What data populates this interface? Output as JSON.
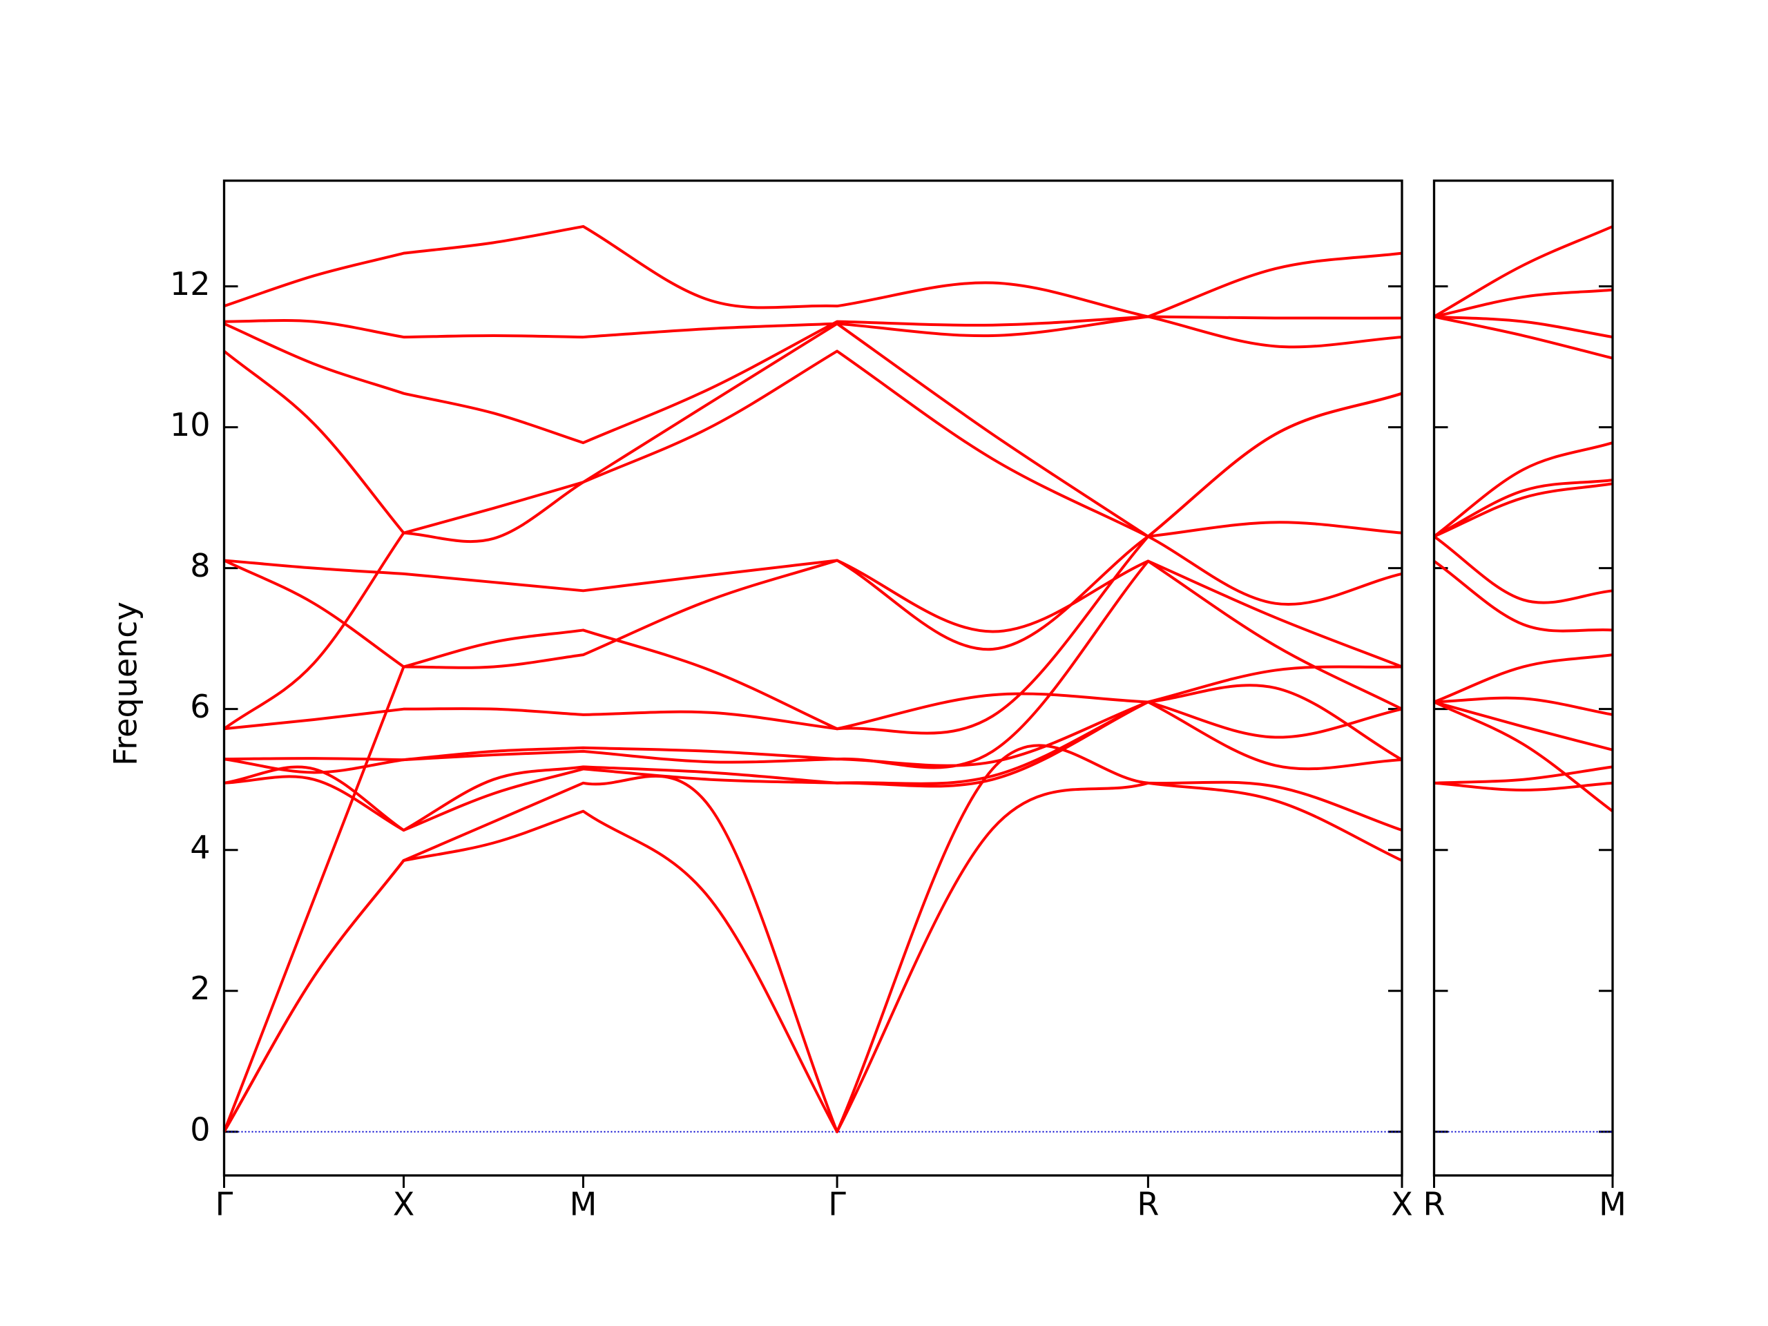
{
  "chart_data": [
    {
      "type": "line",
      "ylabel": "Frequency",
      "color": "#ff0000",
      "hline": 0,
      "hline_color": "#0000cd",
      "xlim": [
        0,
        3.28
      ],
      "ylim": [
        -0.62,
        13.5
      ],
      "xticks": [
        {
          "value": 0,
          "label": "Γ"
        },
        {
          "value": 0.5,
          "label": "X"
        },
        {
          "value": 1.0,
          "label": "M"
        },
        {
          "value": 1.707,
          "label": "Γ"
        },
        {
          "value": 2.573,
          "label": "R"
        },
        {
          "value": 3.28,
          "label": "X"
        }
      ],
      "yticks": [
        0,
        2,
        4,
        6,
        8,
        10,
        12
      ],
      "x": [
        0,
        0.25,
        0.5,
        0.75,
        1.0,
        1.354,
        1.707,
        2.14,
        2.573,
        2.927,
        3.28
      ],
      "series": [
        {
          "values": [
            0,
            2.2,
            3.85,
            4.1,
            4.55,
            3.3,
            0,
            4.3,
            4.95,
            4.7,
            3.85
          ]
        },
        {
          "values": [
            0,
            2.2,
            3.85,
            4.4,
            4.95,
            4.6,
            0,
            5.15,
            4.95,
            4.9,
            4.28
          ]
        },
        {
          "values": [
            0,
            3.3,
            6.6,
            6.95,
            7.12,
            6.55,
            5.72,
            6.2,
            6.1,
            6.55,
            6.6
          ]
        },
        {
          "values": [
            4.95,
            5.0,
            4.28,
            4.8,
            5.15,
            5.0,
            4.95,
            5.0,
            6.1,
            5.6,
            6.0
          ]
        },
        {
          "values": [
            4.95,
            5.15,
            4.28,
            5.0,
            5.18,
            5.1,
            4.95,
            5.05,
            6.1,
            5.2,
            5.28
          ]
        },
        {
          "values": [
            5.29,
            5.1,
            5.28,
            5.35,
            5.4,
            5.25,
            5.29,
            5.25,
            6.1,
            6.3,
            5.28
          ]
        },
        {
          "values": [
            5.29,
            5.3,
            5.28,
            5.4,
            5.45,
            5.4,
            5.29,
            5.4,
            8.1,
            7.3,
            6.6
          ]
        },
        {
          "values": [
            5.72,
            5.85,
            6.0,
            6.0,
            5.92,
            5.95,
            5.72,
            5.9,
            8.45,
            8.65,
            8.5
          ]
        },
        {
          "values": [
            5.72,
            6.65,
            8.5,
            8.42,
            9.22,
            10.0,
            11.08,
            9.55,
            8.45,
            9.9,
            10.48
          ]
        },
        {
          "values": [
            8.11,
            7.5,
            6.6,
            6.6,
            6.77,
            7.55,
            8.11,
            6.85,
            8.45,
            7.5,
            7.92
          ]
        },
        {
          "values": [
            8.11,
            8.0,
            7.92,
            7.8,
            7.68,
            7.9,
            8.11,
            7.1,
            8.1,
            6.9,
            6.0
          ]
        },
        {
          "values": [
            11.08,
            10.05,
            8.5,
            8.85,
            9.22,
            10.35,
            11.47,
            9.9,
            8.45,
            9.9,
            10.48
          ]
        },
        {
          "values": [
            11.47,
            10.9,
            10.48,
            10.2,
            9.78,
            10.55,
            11.5,
            11.45,
            11.57,
            11.15,
            11.28
          ]
        },
        {
          "values": [
            11.5,
            11.5,
            11.28,
            11.3,
            11.28,
            11.4,
            11.47,
            11.3,
            11.57,
            11.55,
            11.55
          ]
        },
        {
          "values": [
            11.72,
            12.15,
            12.47,
            12.62,
            12.85,
            11.8,
            11.72,
            12.05,
            11.57,
            12.25,
            12.47
          ]
        }
      ]
    },
    {
      "type": "line",
      "color": "#ff0000",
      "hline": 0,
      "hline_color": "#0000cd",
      "xlim": [
        0,
        0.5
      ],
      "ylim": [
        -0.62,
        13.5
      ],
      "xticks": [
        {
          "value": 0,
          "label": "R"
        },
        {
          "value": 0.5,
          "label": "M"
        }
      ],
      "x": [
        0,
        0.25,
        0.5
      ],
      "series": [
        {
          "values": [
            4.95,
            4.85,
            4.95
          ]
        },
        {
          "values": [
            4.95,
            5.0,
            5.18
          ]
        },
        {
          "values": [
            6.1,
            5.5,
            4.55
          ]
        },
        {
          "values": [
            6.1,
            5.75,
            5.42
          ]
        },
        {
          "values": [
            6.1,
            6.15,
            5.92
          ]
        },
        {
          "values": [
            6.1,
            6.6,
            6.77
          ]
        },
        {
          "values": [
            8.1,
            7.2,
            7.12
          ]
        },
        {
          "values": [
            8.45,
            7.55,
            7.68
          ]
        },
        {
          "values": [
            8.45,
            9.0,
            9.2
          ]
        },
        {
          "values": [
            8.45,
            9.1,
            9.25
          ]
        },
        {
          "values": [
            8.45,
            9.4,
            9.78
          ]
        },
        {
          "values": [
            11.57,
            11.3,
            10.98
          ]
        },
        {
          "values": [
            11.57,
            11.5,
            11.28
          ]
        },
        {
          "values": [
            11.57,
            11.85,
            11.95
          ]
        },
        {
          "values": [
            11.57,
            12.3,
            12.85
          ]
        }
      ]
    }
  ]
}
